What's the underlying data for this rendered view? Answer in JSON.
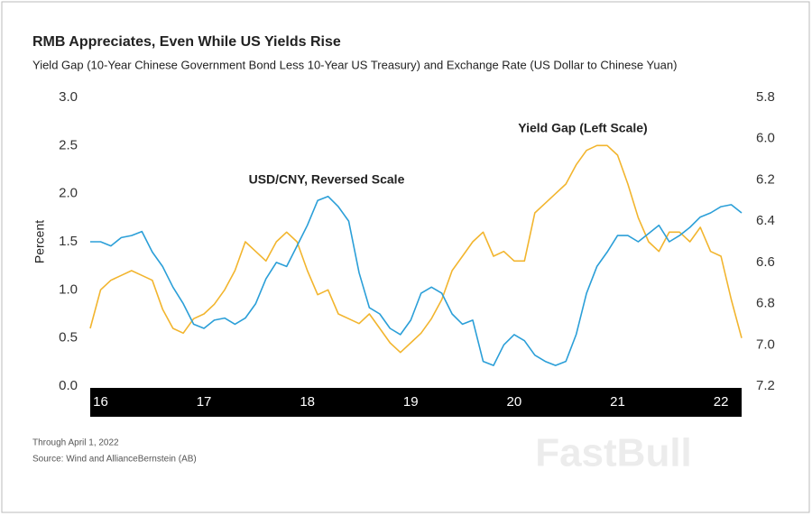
{
  "chart_data": {
    "type": "line",
    "title": "RMB Appreciates, Even While US Yields Rise",
    "subtitle": "Yield Gap (10-Year Chinese Government Bond Less 10-Year US Treasury) and Exchange Rate (US Dollar to Chinese Yuan)",
    "y_label": "Percent",
    "annotations": [
      "Yield Gap (Left Scale)",
      "USD/CNY, Reversed Scale"
    ],
    "notes": [
      "Through April 1, 2022",
      "Source: Wind and AllianceBernstein (AB)"
    ],
    "watermark": "FastBull",
    "x": [
      15.9,
      16.0,
      16.1,
      16.2,
      16.3,
      16.4,
      16.5,
      16.6,
      16.7,
      16.8,
      16.9,
      17.0,
      17.1,
      17.2,
      17.3,
      17.4,
      17.5,
      17.6,
      17.7,
      17.8,
      17.9,
      18.0,
      18.1,
      18.2,
      18.3,
      18.4,
      18.5,
      18.6,
      18.7,
      18.8,
      18.9,
      19.0,
      19.1,
      19.2,
      19.3,
      19.4,
      19.5,
      19.6,
      19.7,
      19.8,
      19.9,
      20.0,
      20.1,
      20.2,
      20.3,
      20.4,
      20.5,
      20.6,
      20.7,
      20.8,
      20.9,
      21.0,
      21.1,
      21.2,
      21.3,
      21.4,
      21.5,
      21.6,
      21.7,
      21.8,
      21.9,
      22.0,
      22.1,
      22.2
    ],
    "xlim": [
      15.9,
      22.2
    ],
    "xticks": [
      16,
      17,
      18,
      19,
      20,
      21,
      22
    ],
    "ylim": [
      0,
      3
    ],
    "yticks": [
      {
        "value": 0,
        "label": "0.0"
      },
      0.5,
      {
        "value": 1,
        "label": "1.0"
      },
      1.5,
      {
        "value": 2,
        "label": "2.0"
      },
      2.5,
      {
        "value": 3,
        "label": "3.0"
      }
    ],
    "y2lim": [
      7.2,
      5.8
    ],
    "y2ticks": [
      5.8,
      {
        "value": 6,
        "label": "6.0"
      },
      6.2,
      6.4,
      6.6,
      6.8,
      {
        "value": 7,
        "label": "7.0"
      },
      7.2
    ],
    "series": [
      {
        "name": "Yield Gap",
        "color": "#f2b52e",
        "values": [
          0.6,
          1.0,
          1.1,
          1.15,
          1.2,
          1.15,
          1.1,
          0.8,
          0.6,
          0.55,
          0.7,
          0.75,
          0.85,
          1.0,
          1.2,
          1.5,
          1.4,
          1.3,
          1.5,
          1.6,
          1.5,
          1.2,
          0.95,
          1.0,
          0.75,
          0.7,
          0.65,
          0.75,
          0.6,
          0.45,
          0.35,
          0.45,
          0.55,
          0.7,
          0.9,
          1.2,
          1.35,
          1.5,
          1.6,
          1.35,
          1.4,
          1.3,
          1.3,
          1.8,
          1.9,
          2.0,
          2.1,
          2.3,
          2.45,
          2.5,
          2.5,
          2.4,
          2.1,
          1.75,
          1.5,
          1.4,
          1.6,
          1.6,
          1.5,
          1.65,
          1.4,
          1.35,
          0.9,
          0.5
        ]
      },
      {
        "name": "USD/CNY",
        "color": "#2b9fd8",
        "axis": "y2",
        "values": [
          6.5,
          6.5,
          6.52,
          6.48,
          6.47,
          6.45,
          6.55,
          6.62,
          6.72,
          6.8,
          6.9,
          6.92,
          6.88,
          6.87,
          6.9,
          6.87,
          6.8,
          6.68,
          6.6,
          6.62,
          6.52,
          6.42,
          6.3,
          6.28,
          6.33,
          6.4,
          6.65,
          6.82,
          6.85,
          6.92,
          6.95,
          6.88,
          6.75,
          6.72,
          6.75,
          6.85,
          6.9,
          6.88,
          7.08,
          7.1,
          7.0,
          6.95,
          6.98,
          7.05,
          7.08,
          7.1,
          7.08,
          6.95,
          6.75,
          6.62,
          6.55,
          6.47,
          6.47,
          6.5,
          6.46,
          6.42,
          6.5,
          6.47,
          6.43,
          6.38,
          6.36,
          6.33,
          6.32,
          6.36
        ]
      }
    ]
  }
}
